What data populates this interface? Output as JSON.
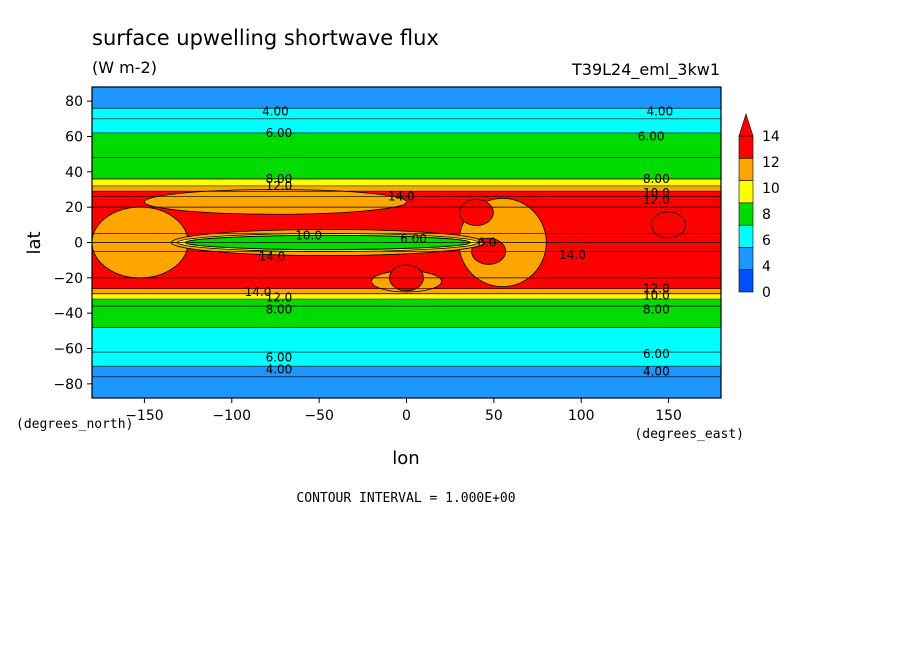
{
  "chart_data": {
    "type": "heatmap",
    "title": "surface upwelling shortwave flux",
    "units": "(W m-2)",
    "experiment": "T39L24_eml_3kw1",
    "xlabel": "lon",
    "ylabel": "lat",
    "x_unit_label": "(degrees_east)",
    "y_unit_label": "(degrees_north)",
    "xlim": [
      -180,
      180
    ],
    "ylim": [
      -88,
      88
    ],
    "x_ticks": [
      -150,
      -100,
      -50,
      0,
      50,
      100,
      150
    ],
    "y_ticks": [
      -80,
      -60,
      -40,
      -20,
      0,
      20,
      40,
      60,
      80
    ],
    "colorbar": {
      "levels": [
        0,
        2,
        4,
        6,
        8,
        10,
        12,
        14
      ],
      "tick_labels": [
        "0",
        "4",
        "6",
        "8",
        "10",
        "12",
        "14"
      ],
      "colors": [
        "#0050ff",
        "#1e96ff",
        "#00ffff",
        "#00dc00",
        "#ffff00",
        "#ffa500",
        "#ff0000"
      ],
      "overflow_arrow": true
    },
    "lat_profile": [
      {
        "lat": -88,
        "value": 2.5
      },
      {
        "lat": -76,
        "value": 3.5
      },
      {
        "lat": -70,
        "value": 4.5
      },
      {
        "lat": -62,
        "value": 5.5
      },
      {
        "lat": -48,
        "value": 6.5
      },
      {
        "lat": -36,
        "value": 7.5
      },
      {
        "lat": -32,
        "value": 8.5
      },
      {
        "lat": -29,
        "value": 10.5
      },
      {
        "lat": -26,
        "value": 12.5
      },
      {
        "lat": -20,
        "value": 14.5
      },
      {
        "lat": -5,
        "value": 14.5
      },
      {
        "lat": 0,
        "value": 14.5
      },
      {
        "lat": 5,
        "value": 14.5
      },
      {
        "lat": 20,
        "value": 14.5
      },
      {
        "lat": 26,
        "value": 12.5
      },
      {
        "lat": 29,
        "value": 10.5
      },
      {
        "lat": 32,
        "value": 8.5
      },
      {
        "lat": 36,
        "value": 7.5
      },
      {
        "lat": 48,
        "value": 6.5
      },
      {
        "lat": 62,
        "value": 5.5
      },
      {
        "lat": 70,
        "value": 4.5
      },
      {
        "lat": 76,
        "value": 3.5
      },
      {
        "lat": 88,
        "value": 2.5
      }
    ],
    "orange_regions_lon_lat": [
      {
        "lon": [
          -180,
          -125
        ],
        "lat": [
          -20,
          20
        ]
      },
      {
        "lon": [
          30,
          80
        ],
        "lat": [
          -25,
          25
        ]
      },
      {
        "lon": [
          -20,
          20
        ],
        "lat": [
          -28,
          -16
        ]
      },
      {
        "lon": [
          -150,
          0
        ],
        "lat": [
          16,
          30
        ]
      }
    ],
    "red_spots_lon_lat": [
      {
        "lon": 40,
        "lat": 17
      },
      {
        "lon": 47,
        "lat": -5
      },
      {
        "lon": 0,
        "lat": -20
      },
      {
        "lon": 150,
        "lat": 10
      }
    ],
    "equatorial_band": {
      "lon": [
        -130,
        40
      ],
      "lat": [
        -4,
        4
      ],
      "value": 6.5
    },
    "contour_labels": [
      {
        "lon": -75,
        "lat": 74,
        "text": "4.00"
      },
      {
        "lon": 145,
        "lat": 74,
        "text": "4.00"
      },
      {
        "lon": -73,
        "lat": 62,
        "text": "6.00"
      },
      {
        "lon": 140,
        "lat": 60,
        "text": "6.00"
      },
      {
        "lon": -73,
        "lat": 36,
        "text": "8.00"
      },
      {
        "lon": -73,
        "lat": 32,
        "text": "12.0"
      },
      {
        "lon": 143,
        "lat": 36,
        "text": "8.00"
      },
      {
        "lon": 143,
        "lat": 28,
        "text": "10.0"
      },
      {
        "lon": 143,
        "lat": 24,
        "text": "12.0"
      },
      {
        "lon": -3,
        "lat": 26,
        "text": "14.0"
      },
      {
        "lon": -56,
        "lat": 4,
        "text": "10.0"
      },
      {
        "lon": 4,
        "lat": 2,
        "text": "6.00"
      },
      {
        "lon": 46,
        "lat": 0,
        "text": "6.0"
      },
      {
        "lon": -77,
        "lat": -8,
        "text": "14.0"
      },
      {
        "lon": 95,
        "lat": -7,
        "text": "14.0"
      },
      {
        "lon": -85,
        "lat": -28,
        "text": "14.0"
      },
      {
        "lon": -73,
        "lat": -31,
        "text": "12.0"
      },
      {
        "lon": -73,
        "lat": -38,
        "text": "8.00"
      },
      {
        "lon": 143,
        "lat": -26,
        "text": "12.0"
      },
      {
        "lon": 143,
        "lat": -30,
        "text": "10.0"
      },
      {
        "lon": 143,
        "lat": -38,
        "text": "8.00"
      },
      {
        "lon": -73,
        "lat": -65,
        "text": "6.00"
      },
      {
        "lon": 143,
        "lat": -63,
        "text": "6.00"
      },
      {
        "lon": -73,
        "lat": -72,
        "text": "4.00"
      },
      {
        "lon": 143,
        "lat": -73,
        "text": "4.00"
      }
    ],
    "footer": "CONTOUR INTERVAL = 1.000E+00"
  }
}
